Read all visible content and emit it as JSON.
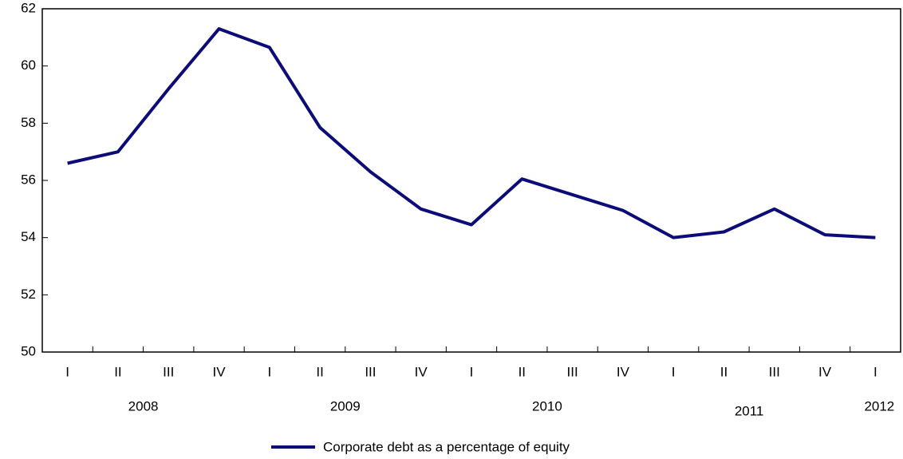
{
  "chart_data": {
    "type": "line",
    "categories": [
      "I",
      "II",
      "III",
      "IV",
      "I",
      "II",
      "III",
      "IV",
      "I",
      "II",
      "III",
      "IV",
      "I",
      "II",
      "III",
      "IV",
      "I"
    ],
    "year_groups": [
      "2008",
      "2009",
      "2010",
      "2011",
      "2012"
    ],
    "series": [
      {
        "name": "Corporate debt as a percentage of equity",
        "color": "#0c0c78",
        "values": [
          56.6,
          57.0,
          59.2,
          61.3,
          60.65,
          57.85,
          56.3,
          55.0,
          54.45,
          56.05,
          55.5,
          54.95,
          54.0,
          54.2,
          55.0,
          54.1,
          54.0
        ]
      }
    ],
    "ylim": [
      50,
      62
    ],
    "yticks": [
      50,
      52,
      54,
      56,
      58,
      60,
      62
    ],
    "grid": false,
    "legend": "bottom"
  }
}
